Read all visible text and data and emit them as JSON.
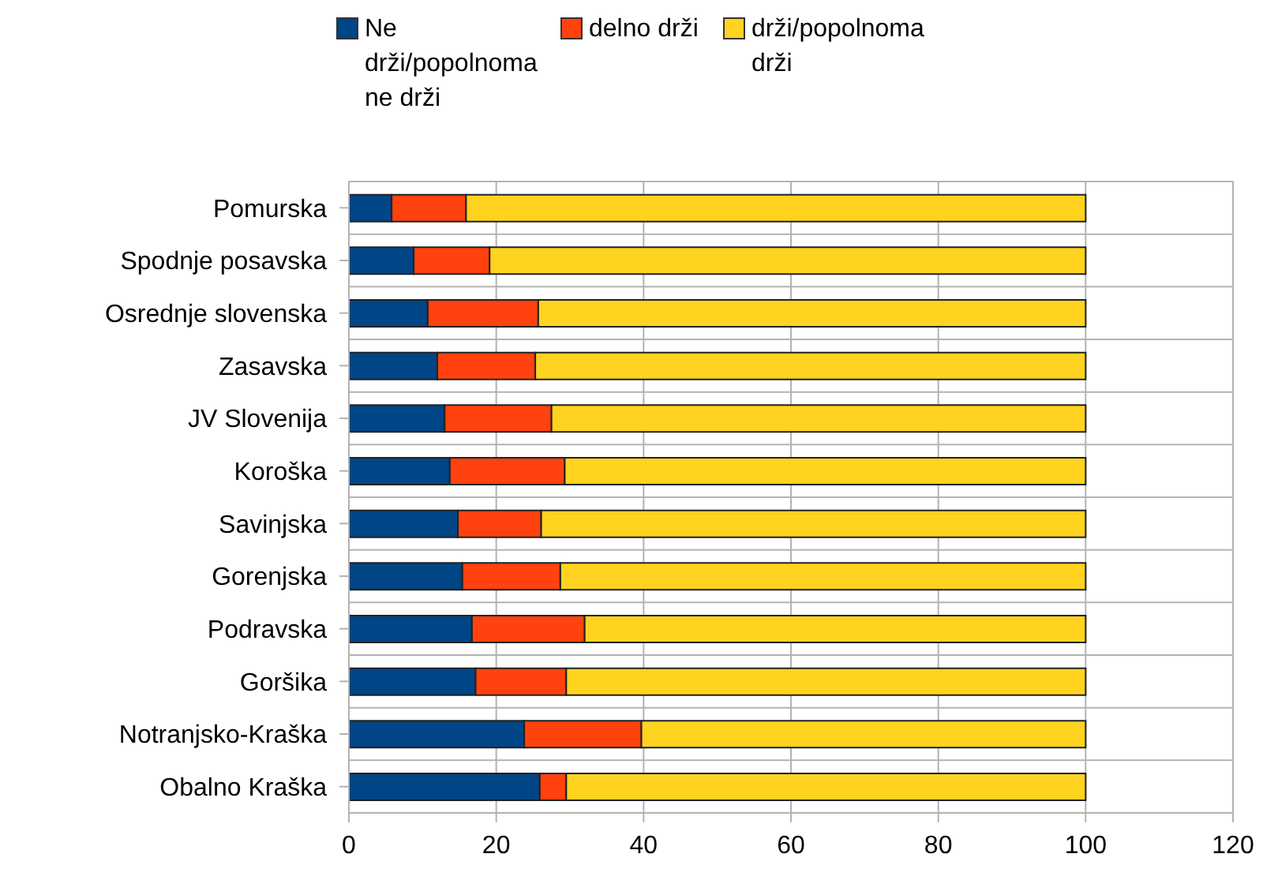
{
  "chart_data": {
    "type": "bar",
    "orientation": "horizontal",
    "stacked": true,
    "categories": [
      "Pomurska",
      "Spodnje posavska",
      "Osrednje slovenska",
      "Zasavska",
      "JV Slovenija",
      "Koroška",
      "Savinjska",
      "Gorenjska",
      "Podravska",
      "Goršika",
      "Notranjsko-Kraška",
      "Obalno Kraška"
    ],
    "series": [
      {
        "name": "Ne drži/popolnoma ne drži",
        "color": "#004586",
        "values": [
          5.8,
          8.8,
          10.7,
          12,
          13,
          13.7,
          14.8,
          15.4,
          16.7,
          17.2,
          23.8,
          25.9
        ]
      },
      {
        "name": "delno drži",
        "color": "#ff420e",
        "values": [
          10.1,
          10.3,
          15,
          13.3,
          14.5,
          15.6,
          11.3,
          13.3,
          15.3,
          12.3,
          15.9,
          3.6
        ]
      },
      {
        "name": "drži/popolnoma drži",
        "color": "#ffd320",
        "values": [
          84.1,
          80.9,
          74.3,
          74.7,
          72.5,
          70.7,
          73.9,
          71.3,
          68,
          70.5,
          60.3,
          70.5
        ]
      }
    ],
    "xlim": [
      0,
      120
    ],
    "xticks": [
      0,
      20,
      40,
      60,
      80,
      100,
      120
    ],
    "grid": true,
    "legend": "top"
  }
}
